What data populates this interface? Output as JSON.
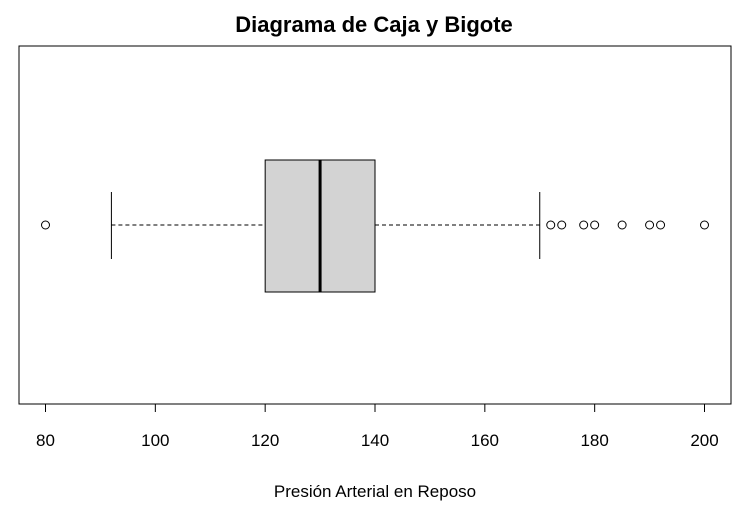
{
  "chart_data": {
    "type": "box",
    "orientation": "horizontal",
    "title": "Diagrama de Caja y Bigote",
    "xlabel": "Presión Arterial en Reposo",
    "ylabel": "",
    "xlim": [
      77,
      202
    ],
    "x_ticks": [
      80,
      100,
      120,
      140,
      160,
      180,
      200
    ],
    "x_tick_labels": [
      "80",
      "100",
      "120",
      "140",
      "160",
      "180",
      "200"
    ],
    "box": {
      "whisker_low": 92,
      "q1": 120,
      "median": 130,
      "q3": 140,
      "whisker_high": 170
    },
    "outliers": [
      80,
      172,
      174,
      178,
      180,
      185,
      190,
      192,
      200
    ],
    "colors": {
      "box_fill": "#d3d3d3",
      "stroke": "#000000",
      "background": "#ffffff"
    }
  }
}
